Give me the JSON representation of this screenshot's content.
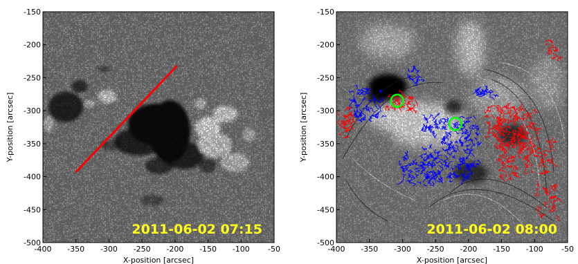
{
  "panels": [
    {
      "id": "left",
      "timestamp": "2011-06-02 07:15",
      "xlabel": "X-position [arcsec]",
      "ylabel": "Y-position [arcsec]",
      "xticks": [
        "-400",
        "-350",
        "-300",
        "-250",
        "-200",
        "-150",
        "-100",
        "-50"
      ],
      "yticks": [
        "-150",
        "-200",
        "-250",
        "-300",
        "-350",
        "-400",
        "-450",
        "-500"
      ],
      "image_kind": "magnetogram",
      "overlay_line": {
        "color": "#ff0000",
        "from": [
          -350,
          -393
        ],
        "to": [
          -197,
          -232
        ]
      }
    },
    {
      "id": "right",
      "timestamp": "2011-06-02 08:00",
      "xlabel": "X-position [arcsec]",
      "ylabel": "Y-position [arcsec]",
      "xticks": [
        "-400",
        "-350",
        "-300",
        "-250",
        "-200",
        "-150",
        "-100",
        "-50"
      ],
      "yticks": [
        "-150",
        "-200",
        "-250",
        "-300",
        "-350",
        "-400",
        "-450",
        "-500"
      ],
      "image_kind": "euv-difference",
      "circles": [
        {
          "cx": -308,
          "cy": -285,
          "r": 9,
          "color": "#00ff00"
        },
        {
          "cx": -220,
          "cy": -320,
          "r": 9,
          "color": "#00ff00"
        }
      ],
      "contour_colors": {
        "negative": "#0000ff",
        "positive": "#ff0000"
      }
    }
  ],
  "colors": {
    "stamp": "#ffff1a",
    "line": "#ff0000",
    "circle": "#00ff00"
  }
}
